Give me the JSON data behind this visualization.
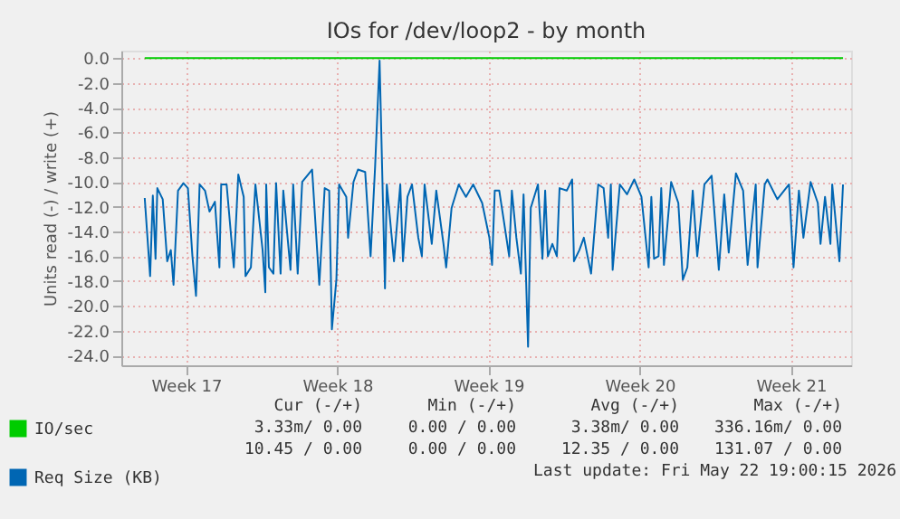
{
  "chart_data": {
    "type": "line",
    "title": "IOs for /dev/loop2 - by month",
    "ylabel": "Units read (-) / write (+)",
    "xlim": [
      "2026-04-19T00:00",
      "2026-05-22T19:00"
    ],
    "ylim": [
      -24.8,
      0.6
    ],
    "xticks": [
      {
        "value": "2026-04-22",
        "label": "Week 17"
      },
      {
        "value": "2026-04-29",
        "label": "Week 18"
      },
      {
        "value": "2026-05-06",
        "label": "Week 19"
      },
      {
        "value": "2026-05-13",
        "label": "Week 20"
      },
      {
        "value": "2026-05-20",
        "label": "Week 21"
      }
    ],
    "yticks": [
      {
        "value": 0,
        "label": "0.0"
      },
      {
        "value": -2,
        "label": "-2.0"
      },
      {
        "value": -4,
        "label": "-4.0"
      },
      {
        "value": -6,
        "label": "-6.0"
      },
      {
        "value": -8,
        "label": "-8.0"
      },
      {
        "value": -10,
        "label": "-10.0"
      },
      {
        "value": -12,
        "label": "-12.0"
      },
      {
        "value": -14,
        "label": "-14.0"
      },
      {
        "value": -16,
        "label": "-16.0"
      },
      {
        "value": -18,
        "label": "-18.0"
      },
      {
        "value": -20,
        "label": "-20.0"
      },
      {
        "value": -22,
        "label": "-22.0"
      },
      {
        "value": -24,
        "label": "-24.0"
      }
    ],
    "grid": true,
    "legend": "bottom left",
    "marker": "none",
    "line_style": "solid",
    "series": [
      {
        "name": "IO/sec",
        "color": "#00cc00",
        "x": [
          "2026-04-20T02:00",
          "2026-05-22T10:00"
        ],
        "values": [
          0,
          0
        ]
      },
      {
        "name": "Req Size (KB)",
        "color": "#0066b3",
        "x": [
          "2026-04-20T02:00",
          "2026-04-20T08:00",
          "2026-04-20T11:00",
          "2026-04-20T14:00",
          "2026-04-20T16:00",
          "2026-04-20T22:00",
          "2026-04-21T03:00",
          "2026-04-21T07:00",
          "2026-04-21T10:00",
          "2026-04-21T15:00",
          "2026-04-21T21:00",
          "2026-04-22T02:00",
          "2026-04-22T07:00",
          "2026-04-22T11:00",
          "2026-04-22T15:00",
          "2026-04-22T21:00",
          "2026-04-23T02:00",
          "2026-04-23T08:00",
          "2026-04-23T13:00",
          "2026-04-23T15:00",
          "2026-04-23T21:00",
          "2026-04-24T05:00",
          "2026-04-24T10:00",
          "2026-04-24T16:00",
          "2026-04-24T18:00",
          "2026-04-25T00:00",
          "2026-04-25T05:00",
          "2026-04-25T13:00",
          "2026-04-25T16:00",
          "2026-04-25T17:00",
          "2026-04-25T20:00",
          "2026-04-26T01:00",
          "2026-04-26T04:00",
          "2026-04-26T09:00",
          "2026-04-26T12:00",
          "2026-04-26T20:00",
          "2026-04-26T23:00",
          "2026-04-27T04:00",
          "2026-04-27T09:00",
          "2026-04-27T20:00",
          "2026-04-28T04:00",
          "2026-04-28T10:00",
          "2026-04-28T15:00",
          "2026-04-28T18:00",
          "2026-04-28T23:00",
          "2026-04-29T02:00",
          "2026-04-29T10:00",
          "2026-04-29T12:00",
          "2026-04-29T18:00",
          "2026-04-29T23:00",
          "2026-04-30T07:00",
          "2026-04-30T13:00",
          "2026-04-30T18:00",
          "2026-04-30T23:00",
          "2026-05-01T05:00",
          "2026-05-01T07:00",
          "2026-05-01T15:00",
          "2026-05-01T22:00",
          "2026-05-02T01:00",
          "2026-05-02T06:00",
          "2026-05-02T11:00",
          "2026-05-02T18:00",
          "2026-05-02T22:00",
          "2026-05-03T01:00",
          "2026-05-03T09:00",
          "2026-05-03T14:00",
          "2026-05-03T22:00",
          "2026-05-04T01:00",
          "2026-05-04T07:00",
          "2026-05-04T15:00",
          "2026-05-04T23:00",
          "2026-05-05T07:00",
          "2026-05-05T17:00",
          "2026-05-06T01:00",
          "2026-05-06T04:00",
          "2026-05-06T07:00",
          "2026-05-06T12:00",
          "2026-05-06T17:00",
          "2026-05-06T23:00",
          "2026-05-07T02:00",
          "2026-05-07T07:00",
          "2026-05-07T12:00",
          "2026-05-07T15:00",
          "2026-05-07T20:00",
          "2026-05-07T23:00",
          "2026-05-08T07:00",
          "2026-05-08T12:00",
          "2026-05-08T15:00",
          "2026-05-08T18:00",
          "2026-05-08T23:00",
          "2026-05-09T04:00",
          "2026-05-09T07:00",
          "2026-05-09T15:00",
          "2026-05-09T21:00",
          "2026-05-09T23:00",
          "2026-05-10T05:00",
          "2026-05-10T10:00",
          "2026-05-10T18:00",
          "2026-05-11T02:00",
          "2026-05-11T08:00",
          "2026-05-11T13:00",
          "2026-05-11T16:00",
          "2026-05-11T18:00",
          "2026-05-12T02:00",
          "2026-05-12T10:00",
          "2026-05-12T18:00",
          "2026-05-13T02:00",
          "2026-05-13T10:00",
          "2026-05-13T13:00",
          "2026-05-13T16:00",
          "2026-05-13T21:00",
          "2026-05-14T00:00",
          "2026-05-14T03:00",
          "2026-05-14T11:00",
          "2026-05-14T19:00",
          "2026-05-15T00:00",
          "2026-05-15T05:00",
          "2026-05-15T11:00",
          "2026-05-15T16:00",
          "2026-05-16T00:00",
          "2026-05-16T08:00",
          "2026-05-16T16:00",
          "2026-05-16T22:00",
          "2026-05-17T03:00",
          "2026-05-17T11:00",
          "2026-05-17T19:00",
          "2026-05-18T00:00",
          "2026-05-18T09:00",
          "2026-05-18T11:00",
          "2026-05-18T19:00",
          "2026-05-18T22:00",
          "2026-05-19T09:00",
          "2026-05-19T22:00",
          "2026-05-20T03:00",
          "2026-05-20T09:00",
          "2026-05-20T14:00",
          "2026-05-20T22:00",
          "2026-05-21T06:00",
          "2026-05-21T09:00",
          "2026-05-21T14:00",
          "2026-05-21T20:00",
          "2026-05-21T22:00",
          "2026-05-22T06:00",
          "2026-05-22T10:00"
        ],
        "values": [
          -11.3,
          -17.6,
          -11.1,
          -16.2,
          -10.5,
          -11.4,
          -16.4,
          -15.5,
          -18.3,
          -10.7,
          -10.1,
          -10.5,
          -16.0,
          -19.2,
          -10.2,
          -10.7,
          -12.4,
          -11.6,
          -16.9,
          -10.2,
          -10.2,
          -16.9,
          -9.4,
          -11.2,
          -17.6,
          -16.9,
          -10.2,
          -15.5,
          -18.9,
          -10.2,
          -16.9,
          -17.4,
          -10.1,
          -17.4,
          -10.7,
          -17.1,
          -10.2,
          -17.4,
          -10.0,
          -9.0,
          -18.3,
          -10.5,
          -10.7,
          -21.9,
          -17.9,
          -10.2,
          -11.2,
          -14.5,
          -10.0,
          -9.0,
          -9.2,
          -16.0,
          -8.8,
          -0.2,
          -18.6,
          -10.2,
          -16.4,
          -10.2,
          -16.4,
          -11.2,
          -10.2,
          -14.5,
          -16.0,
          -10.2,
          -15.0,
          -10.7,
          -15.0,
          -16.9,
          -12.1,
          -10.2,
          -11.2,
          -10.2,
          -11.7,
          -14.5,
          -16.7,
          -10.7,
          -10.7,
          -13.1,
          -16.0,
          -10.7,
          -14.5,
          -17.4,
          -11.0,
          -23.3,
          -12.1,
          -10.2,
          -16.2,
          -10.7,
          -16.0,
          -15.0,
          -16.0,
          -10.5,
          -10.7,
          -9.8,
          -16.4,
          -15.5,
          -14.5,
          -17.4,
          -10.2,
          -10.5,
          -14.5,
          -10.2,
          -17.1,
          -10.2,
          -11.0,
          -9.8,
          -11.2,
          -16.9,
          -11.2,
          -16.2,
          -16.0,
          -10.5,
          -16.7,
          -10.0,
          -11.7,
          -17.9,
          -16.9,
          -10.7,
          -16.0,
          -10.2,
          -9.5,
          -17.1,
          -11.0,
          -15.7,
          -9.3,
          -10.7,
          -16.7,
          -10.2,
          -16.9,
          -10.2,
          -9.8,
          -11.4,
          -10.2,
          -16.9,
          -10.7,
          -14.5,
          -10.0,
          -11.7,
          -15.0,
          -11.2,
          -15.0,
          -10.2,
          -16.4,
          -10.2
        ]
      }
    ],
    "annotations": [
      "Cur (-/+)",
      "Min (-/+)",
      "Avg (-/+)",
      "Max (-/+)",
      "3.33m/ 0.00",
      "0.00 / 0.00",
      "3.38m/ 0.00",
      "336.16m/ 0.00",
      "10.45 / 0.00",
      "0.00 / 0.00",
      "12.35 / 0.00",
      "131.07 / 0.00",
      "Last update: Fri May 22 19:00:15 2026"
    ]
  }
}
